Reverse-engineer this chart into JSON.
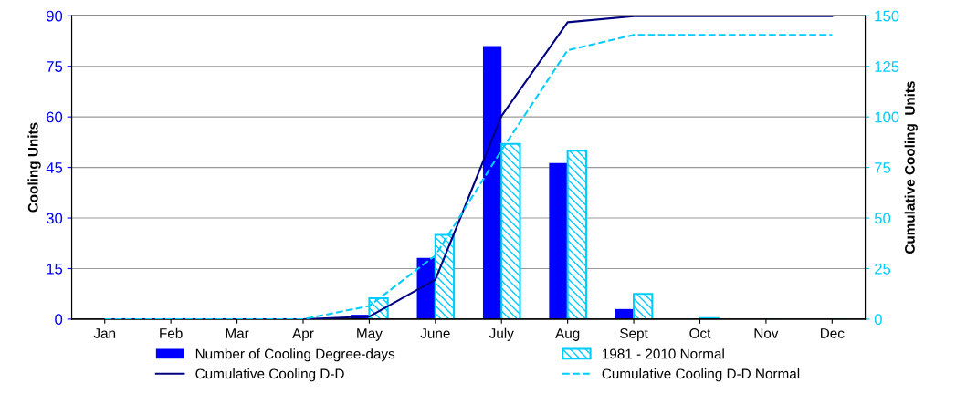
{
  "chart_data": {
    "type": "bar",
    "ylabel": "Cooling Units",
    "y2label": "Cumulative Cooling  Units",
    "categories": [
      "Jan",
      "Feb",
      "Mar",
      "Apr",
      "May",
      "June",
      "July",
      "Aug",
      "Sept",
      "Oct",
      "Nov",
      "Dec"
    ],
    "series": [
      {
        "name": "Number of Cooling Degree-days",
        "color": "#0000ff",
        "values": [
          0,
          0,
          0,
          0,
          1.3,
          18.2,
          81,
          46.3,
          3,
          0,
          0,
          0
        ]
      },
      {
        "name": "1981 - 2010 Normal",
        "color": "#00ccff",
        "values": [
          0,
          0,
          0,
          0,
          6.2,
          25,
          52,
          50,
          7.5,
          0.3,
          0,
          0
        ]
      },
      {
        "name": "Cumulative Cooling D-D",
        "type": "line",
        "axis": "y2",
        "color": "#000080",
        "line_style": "solid",
        "values": [
          0,
          0,
          0,
          0,
          1.3,
          19.5,
          100.5,
          146.8,
          149.8,
          149.8,
          149.8,
          149.8
        ]
      },
      {
        "name": "Cumulative Cooling D-D Normal",
        "type": "line",
        "axis": "y2",
        "color": "#00ccff",
        "line_style": "dashed",
        "values": [
          0,
          0,
          0,
          0,
          6.5,
          31.5,
          83.5,
          133,
          140.5,
          140.5,
          140.5,
          140.5
        ]
      }
    ],
    "ylim": [
      0,
      90
    ],
    "yticks": [
      0,
      15,
      30,
      45,
      60,
      75,
      90
    ],
    "y2lim": [
      0,
      150
    ],
    "y2ticks": [
      0,
      25,
      50,
      75,
      100,
      125,
      150
    ],
    "grid": "y",
    "legend": "bottom"
  }
}
